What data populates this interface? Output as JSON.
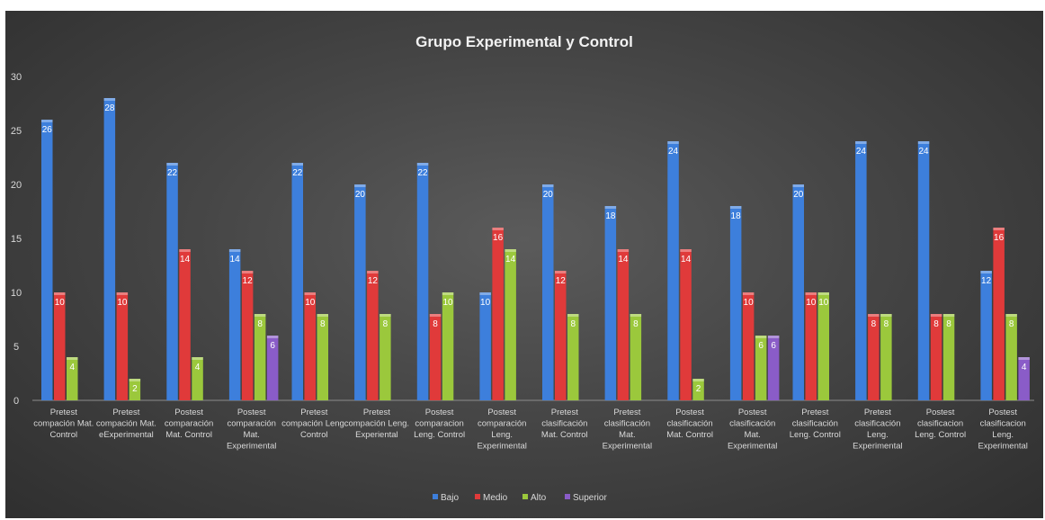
{
  "chart_data": {
    "type": "bar",
    "title": "Grupo Experimental y Control",
    "xlabel": "",
    "ylabel": "",
    "ylim": [
      0,
      30
    ],
    "yticks": [
      0,
      5,
      10,
      15,
      20,
      25,
      30
    ],
    "grid": false,
    "legend_position": "bottom",
    "categories": [
      [
        "Pretest",
        "compación Mat.",
        "Control"
      ],
      [
        "Pretest",
        "compación Mat.",
        "eExperimental"
      ],
      [
        "Postest",
        "comparación",
        "Mat. Control"
      ],
      [
        "Postest",
        "comparación",
        "Mat.",
        "Experimental"
      ],
      [
        "Pretest",
        "compación Leng.",
        "Control"
      ],
      [
        "Pretest",
        "compación Leng.",
        "Experiental"
      ],
      [
        "Postest",
        "comparacion",
        "Leng. Control"
      ],
      [
        "Postest",
        "comparación",
        "Leng.",
        "Experimental"
      ],
      [
        "Pretest",
        "clasificación",
        "Mat. Control"
      ],
      [
        "Pretest",
        "clasificación",
        "Mat.",
        "Experimental"
      ],
      [
        "Postest",
        "clasificación",
        "Mat. Control"
      ],
      [
        "Postest",
        "clasificación",
        "Mat.",
        "Experimental"
      ],
      [
        "Pretest",
        "clasificación",
        "Leng. Control"
      ],
      [
        "Pretest",
        "clasificación",
        "Leng.",
        "Experimental"
      ],
      [
        "Postest",
        "clasificacion",
        "Leng. Control"
      ],
      [
        "Postest",
        "clasificacion",
        "Leng.",
        "Experimental"
      ]
    ],
    "series": [
      {
        "name": "Bajo",
        "color": "#3d7fdc",
        "values": [
          26,
          28,
          22,
          14,
          22,
          20,
          22,
          10,
          20,
          18,
          24,
          18,
          20,
          24,
          24,
          12
        ]
      },
      {
        "name": "Medio",
        "color": "#e03a3a",
        "values": [
          10,
          10,
          14,
          12,
          10,
          12,
          8,
          16,
          12,
          14,
          14,
          10,
          10,
          8,
          8,
          16
        ]
      },
      {
        "name": "Alto",
        "color": "#9bc83c",
        "values": [
          4,
          2,
          4,
          8,
          8,
          8,
          10,
          14,
          8,
          8,
          2,
          6,
          10,
          8,
          8,
          8
        ]
      },
      {
        "name": "Superior",
        "color": "#8a5cc8",
        "values": [
          0,
          0,
          0,
          6,
          0,
          0,
          0,
          0,
          0,
          0,
          0,
          6,
          0,
          0,
          0,
          4
        ]
      }
    ]
  }
}
